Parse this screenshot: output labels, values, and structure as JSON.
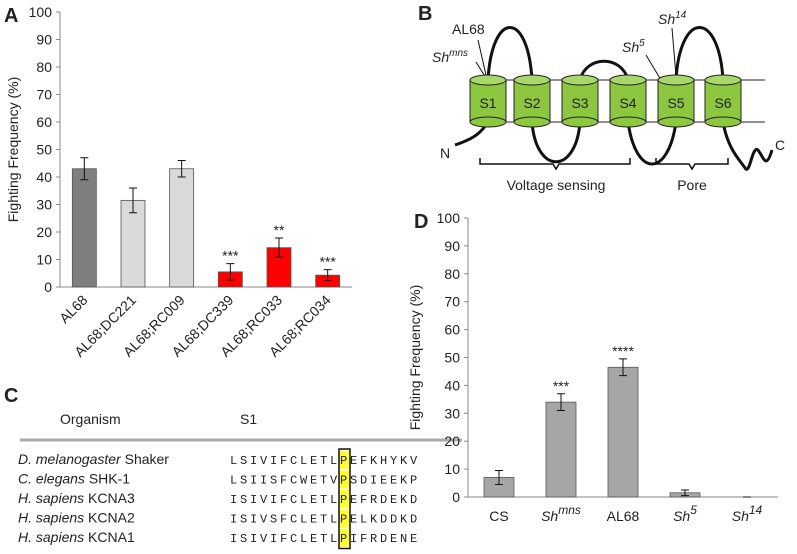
{
  "chart_data": [
    {
      "type": "bar",
      "panel": "A",
      "y_label": "Fighting Frequency (%)",
      "categories": [
        "AL68",
        "AL68;DC221",
        "AL68;RC009",
        "AL68;DC339",
        "AL68;RC033",
        "AL68;RC034"
      ],
      "values": [
        43,
        31.5,
        43,
        5.5,
        14.3,
        4.3
      ],
      "errors": [
        4,
        4.5,
        3,
        3,
        3.5,
        2
      ],
      "colors": [
        "#7f7f7f",
        "#d9d9d9",
        "#d9d9d9",
        "#ff0000",
        "#ff0000",
        "#ff0000"
      ],
      "annotations": [
        null,
        null,
        null,
        "***",
        "**",
        "***"
      ],
      "ylim": [
        0,
        100
      ],
      "yticks": [
        0,
        10,
        20,
        30,
        40,
        50,
        60,
        70,
        80,
        90,
        100
      ]
    },
    {
      "type": "bar",
      "panel": "D",
      "y_label": "Fighting Frequency (%)",
      "categories": [
        "CS",
        "Sh",
        "AL68",
        "Sh",
        "Sh"
      ],
      "category_superscripts": [
        null,
        "mns",
        null,
        "5",
        "14"
      ],
      "values": [
        7,
        34,
        46.5,
        1.5,
        0
      ],
      "errors": [
        2.5,
        3,
        3,
        1,
        0
      ],
      "colors": [
        "#a6a6a6",
        "#a6a6a6",
        "#a6a6a6",
        "#a6a6a6",
        "#a6a6a6"
      ],
      "annotations": [
        null,
        "***",
        "****",
        null,
        null
      ],
      "ylim": [
        0,
        100
      ],
      "yticks": [
        0,
        10,
        20,
        30,
        40,
        50,
        60,
        70,
        80,
        90,
        100
      ]
    }
  ],
  "diagram": {
    "panel": "B",
    "al68": "AL68",
    "mutants": [
      {
        "base": "Sh",
        "sup": "mns"
      },
      {
        "base": "Sh",
        "sup": "5"
      },
      {
        "base": "Sh",
        "sup": "14"
      }
    ],
    "segments": [
      "S1",
      "S2",
      "S3",
      "S4",
      "S5",
      "S6"
    ],
    "n_term": "N",
    "c_term": "C",
    "regions": [
      "Voltage sensing",
      "Pore"
    ]
  },
  "alignment": {
    "panel": "C",
    "header": [
      "Organism",
      "S1"
    ],
    "rows": [
      {
        "species": "D. melanogaster",
        "protein": " Shaker",
        "red": "LSIVIFCL",
        "pre": "ETL",
        "site": "P",
        "post": "EFKHYKV"
      },
      {
        "species": "C. elegans",
        "protein": " SHK-1",
        "red": "LSIISFCW",
        "pre": "ETV",
        "site": "P",
        "post": "SDIEEKP"
      },
      {
        "species": "H. sapiens",
        "protein": " KCNA3",
        "red": "ISIVIFCL",
        "pre": "ETL",
        "site": "P",
        "post": "EFRDEKD"
      },
      {
        "species": "H. sapiens",
        "protein": " KCNA2",
        "red": "ISIVSFCL",
        "pre": "ETL",
        "site": "P",
        "post": "ELKDDKD"
      },
      {
        "species": "H. sapiens",
        "protein": " KCNA1",
        "red": "ISIVIFCL",
        "pre": "ETL",
        "site": "P",
        "post": "IFRDENE"
      }
    ]
  }
}
